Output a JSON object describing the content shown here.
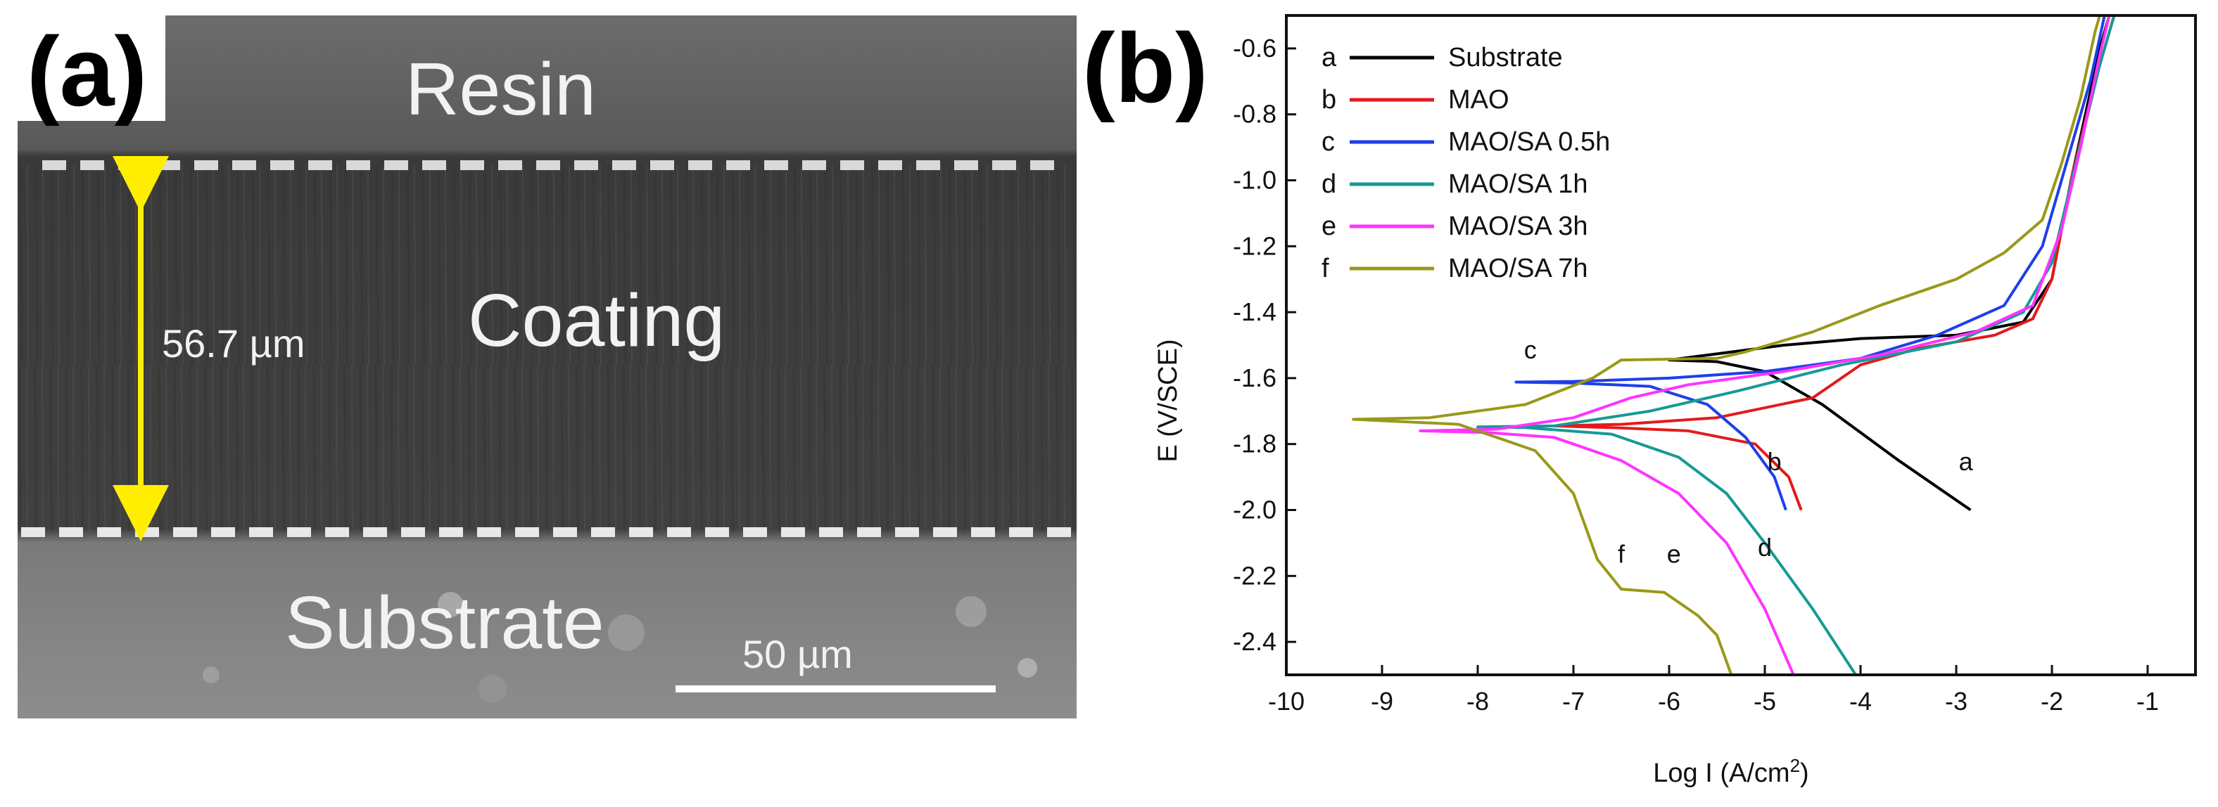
{
  "panel_a": {
    "label": "(a)",
    "layer_top": "Resin",
    "layer_middle": "Coating",
    "layer_bottom": "Substrate",
    "thickness_label": "56.7 µm",
    "scale_bar_label": "50 µm"
  },
  "panel_b": {
    "label": "(b)"
  },
  "chart_data": {
    "type": "line",
    "title": "",
    "xlabel": "Log I (A/cm",
    "xlabel_superscript": "2",
    "xlabel_suffix": ")",
    "ylabel": "E (V/SCE)",
    "xlim": [
      -10,
      -0.5
    ],
    "ylim": [
      -2.5,
      -0.5
    ],
    "x_ticks": [
      -10,
      -9,
      -8,
      -7,
      -6,
      -5,
      -4,
      -3,
      -2,
      -1
    ],
    "y_ticks": [
      -0.6,
      -0.8,
      -1.0,
      -1.2,
      -1.4,
      -1.6,
      -1.8,
      -2.0,
      -2.2,
      -2.4
    ],
    "legend_position": "top-left",
    "series": [
      {
        "key": "a",
        "name": "Substrate",
        "color": "#000000",
        "label_pos": [
          -2.9,
          -1.88
        ],
        "points": [
          [
            -2.85,
            -2.0
          ],
          [
            -3.6,
            -1.85
          ],
          [
            -4.4,
            -1.68
          ],
          [
            -5.0,
            -1.58
          ],
          [
            -5.5,
            -1.55
          ],
          [
            -6.0,
            -1.545
          ],
          [
            -5.6,
            -1.53
          ],
          [
            -4.8,
            -1.5
          ],
          [
            -4.0,
            -1.48
          ],
          [
            -3.0,
            -1.47
          ],
          [
            -2.3,
            -1.43
          ],
          [
            -2.0,
            -1.3
          ],
          [
            -1.8,
            -1.0
          ],
          [
            -1.65,
            -0.8
          ],
          [
            -1.5,
            -0.6
          ],
          [
            -1.4,
            -0.5
          ]
        ]
      },
      {
        "key": "b",
        "name": "MAO",
        "color": "#e31a1c",
        "label_pos": [
          -4.9,
          -1.88
        ],
        "points": [
          [
            -4.62,
            -2.0
          ],
          [
            -4.75,
            -1.9
          ],
          [
            -5.1,
            -1.8
          ],
          [
            -5.8,
            -1.76
          ],
          [
            -6.6,
            -1.75
          ],
          [
            -7.2,
            -1.745
          ],
          [
            -6.5,
            -1.74
          ],
          [
            -5.5,
            -1.72
          ],
          [
            -4.5,
            -1.66
          ],
          [
            -4.0,
            -1.56
          ],
          [
            -3.4,
            -1.51
          ],
          [
            -2.6,
            -1.47
          ],
          [
            -2.2,
            -1.42
          ],
          [
            -2.0,
            -1.3
          ],
          [
            -1.8,
            -1.0
          ],
          [
            -1.55,
            -0.7
          ],
          [
            -1.35,
            -0.5
          ]
        ]
      },
      {
        "key": "c",
        "name": "MAO/SA 0.5h",
        "color": "#1f3fe8",
        "label_pos": [
          -7.45,
          -1.54
        ],
        "points": [
          [
            -4.78,
            -2.0
          ],
          [
            -4.9,
            -1.9
          ],
          [
            -5.2,
            -1.78
          ],
          [
            -5.6,
            -1.68
          ],
          [
            -6.2,
            -1.625
          ],
          [
            -7.0,
            -1.615
          ],
          [
            -7.6,
            -1.612
          ],
          [
            -7.0,
            -1.61
          ],
          [
            -6.0,
            -1.6
          ],
          [
            -5.0,
            -1.58
          ],
          [
            -4.0,
            -1.54
          ],
          [
            -3.2,
            -1.47
          ],
          [
            -2.5,
            -1.38
          ],
          [
            -2.1,
            -1.2
          ],
          [
            -1.85,
            -0.95
          ],
          [
            -1.6,
            -0.7
          ],
          [
            -1.45,
            -0.5
          ]
        ]
      },
      {
        "key": "d",
        "name": "MAO/SA 1h",
        "color": "#159a96",
        "label_pos": [
          -5.0,
          -2.14
        ],
        "points": [
          [
            -4.05,
            -2.5
          ],
          [
            -4.5,
            -2.3
          ],
          [
            -5.0,
            -2.1
          ],
          [
            -5.4,
            -1.95
          ],
          [
            -5.9,
            -1.84
          ],
          [
            -6.6,
            -1.77
          ],
          [
            -7.5,
            -1.75
          ],
          [
            -8.0,
            -1.748
          ],
          [
            -7.2,
            -1.745
          ],
          [
            -6.2,
            -1.7
          ],
          [
            -5.3,
            -1.64
          ],
          [
            -4.2,
            -1.56
          ],
          [
            -3.0,
            -1.49
          ],
          [
            -2.3,
            -1.4
          ],
          [
            -2.0,
            -1.25
          ],
          [
            -1.75,
            -0.95
          ],
          [
            -1.5,
            -0.65
          ],
          [
            -1.35,
            -0.5
          ]
        ]
      },
      {
        "key": "e",
        "name": "MAO/SA 3h",
        "color": "#ff33ff",
        "label_pos": [
          -5.95,
          -2.16
        ],
        "points": [
          [
            -4.7,
            -2.5
          ],
          [
            -5.0,
            -2.3
          ],
          [
            -5.4,
            -2.1
          ],
          [
            -5.9,
            -1.95
          ],
          [
            -6.5,
            -1.85
          ],
          [
            -7.2,
            -1.78
          ],
          [
            -7.9,
            -1.765
          ],
          [
            -8.6,
            -1.76
          ],
          [
            -7.8,
            -1.755
          ],
          [
            -7.0,
            -1.72
          ],
          [
            -6.4,
            -1.66
          ],
          [
            -5.8,
            -1.62
          ],
          [
            -4.8,
            -1.58
          ],
          [
            -3.8,
            -1.53
          ],
          [
            -2.8,
            -1.46
          ],
          [
            -2.2,
            -1.38
          ],
          [
            -1.9,
            -1.15
          ],
          [
            -1.7,
            -0.9
          ],
          [
            -1.5,
            -0.62
          ],
          [
            -1.4,
            -0.5
          ]
        ]
      },
      {
        "key": "f",
        "name": "MAO/SA 7h",
        "color": "#999919",
        "label_pos": [
          -6.5,
          -2.16
        ],
        "points": [
          [
            -5.35,
            -2.5
          ],
          [
            -5.5,
            -2.38
          ],
          [
            -5.7,
            -2.32
          ],
          [
            -6.05,
            -2.25
          ],
          [
            -6.5,
            -2.24
          ],
          [
            -6.75,
            -2.15
          ],
          [
            -7.0,
            -1.95
          ],
          [
            -7.4,
            -1.82
          ],
          [
            -8.2,
            -1.74
          ],
          [
            -9.3,
            -1.725
          ],
          [
            -8.5,
            -1.72
          ],
          [
            -7.5,
            -1.68
          ],
          [
            -6.8,
            -1.6
          ],
          [
            -6.5,
            -1.545
          ],
          [
            -5.5,
            -1.54
          ],
          [
            -5.2,
            -1.52
          ],
          [
            -4.5,
            -1.46
          ],
          [
            -3.8,
            -1.38
          ],
          [
            -3.0,
            -1.3
          ],
          [
            -2.5,
            -1.22
          ],
          [
            -2.1,
            -1.12
          ],
          [
            -1.9,
            -0.95
          ],
          [
            -1.7,
            -0.75
          ],
          [
            -1.55,
            -0.55
          ],
          [
            -1.5,
            -0.5
          ]
        ]
      }
    ]
  }
}
